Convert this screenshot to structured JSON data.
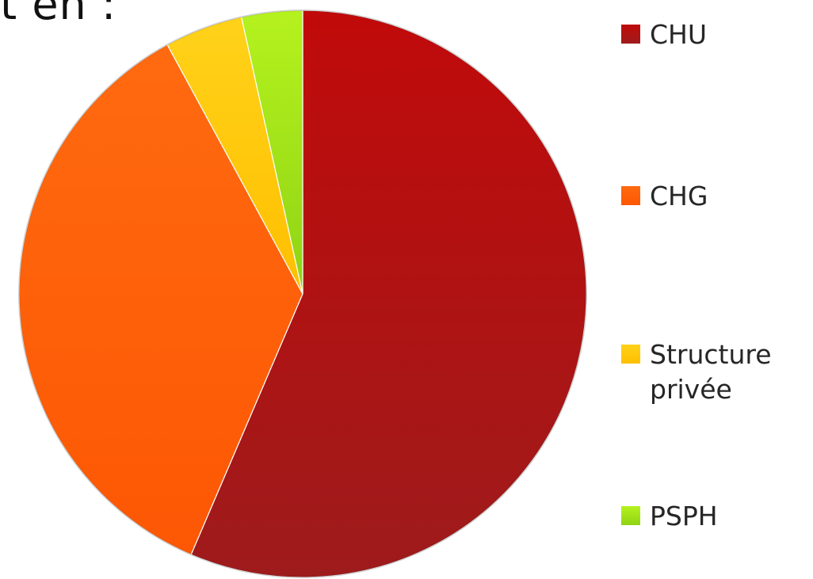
{
  "top_fragment": "t en :",
  "chart_data": {
    "type": "pie",
    "title": "",
    "slices": [
      {
        "label": "CHU",
        "value": 57,
        "color": "#9e1b1c",
        "highlight": "#c10a0a"
      },
      {
        "label": "CHG",
        "value": 36,
        "color": "#fd5704",
        "highlight": "#ff6a10"
      },
      {
        "label": "Structure\nprivée",
        "value": 4.5,
        "color": "#ffbf00",
        "highlight": "#ffd21a"
      },
      {
        "label": "PSPH",
        "value": 3.5,
        "color": "#8fd314",
        "highlight": "#b5f21e"
      }
    ],
    "start_angle_deg": 0,
    "direction": "clockwise",
    "legend_position": "right"
  }
}
